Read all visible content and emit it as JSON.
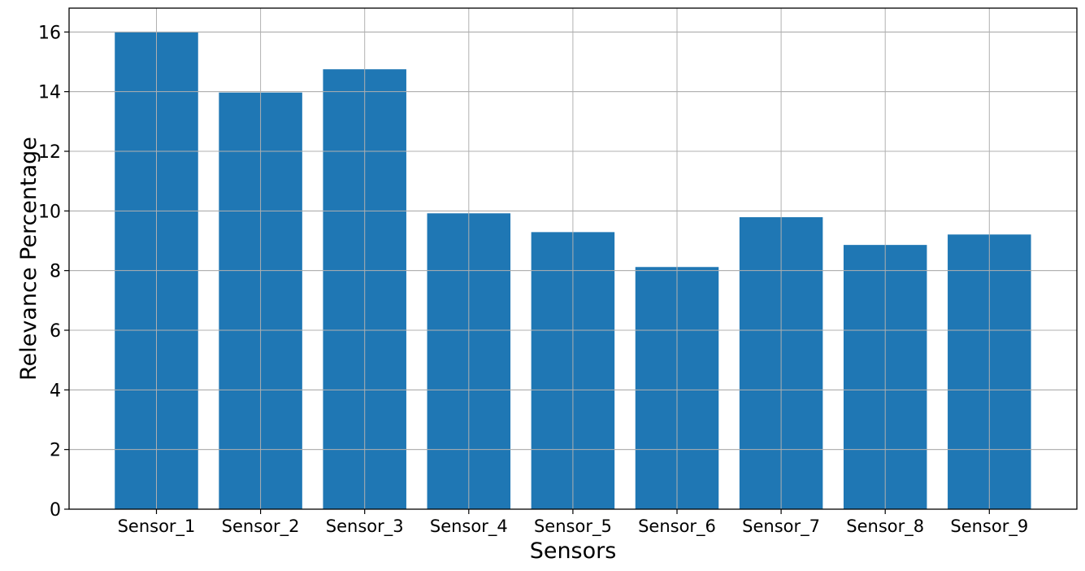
{
  "chart_data": {
    "type": "bar",
    "title": "",
    "xlabel": "Sensors",
    "ylabel": "Relevance Percentage",
    "categories": [
      "Sensor_1",
      "Sensor_2",
      "Sensor_3",
      "Sensor_4",
      "Sensor_5",
      "Sensor_6",
      "Sensor_7",
      "Sensor_8",
      "Sensor_9"
    ],
    "values": [
      16.0,
      13.97,
      14.75,
      9.92,
      9.29,
      8.12,
      9.79,
      8.86,
      9.21
    ],
    "ylim": [
      0,
      16.8
    ],
    "yticks": [
      0,
      2,
      4,
      6,
      8,
      10,
      12,
      14,
      16
    ],
    "grid": true,
    "bar_color": "#1f77b4",
    "grid_color": "#b0b0b0"
  }
}
